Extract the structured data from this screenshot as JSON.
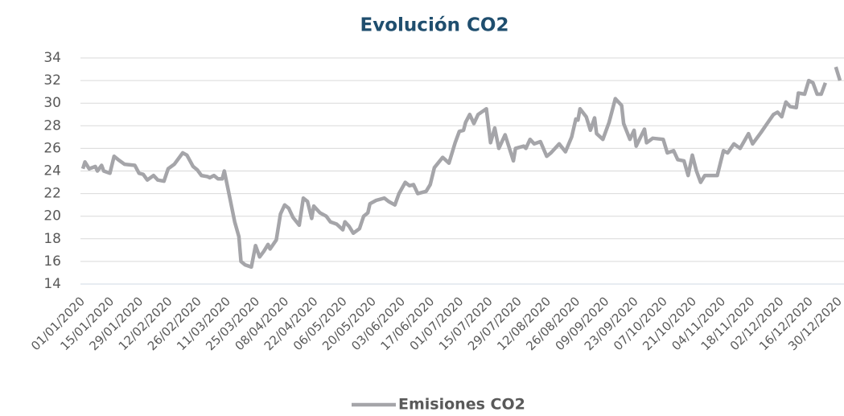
{
  "chart_data": {
    "type": "line",
    "title": "Evolución CO2",
    "x": [
      "01/01/2020",
      "02/01/2020",
      "04/01/2020",
      "07/01/2020",
      "08/01/2020",
      "10/01/2020",
      "11/01/2020",
      "14/01/2020",
      "16/01/2020",
      "18/01/2020",
      "21/01/2020",
      "26/01/2020",
      "28/01/2020",
      "30/01/2020",
      "01/02/2020",
      "04/02/2020",
      "06/02/2020",
      "09/02/2020",
      "11/02/2020",
      "14/02/2020",
      "18/02/2020",
      "20/02/2020",
      "23/02/2020",
      "25/02/2020",
      "27/02/2020",
      "01/03/2020",
      "02/03/2020",
      "04/03/2020",
      "06/03/2020",
      "08/03/2020",
      "09/03/2020",
      "11/03/2020",
      "14/03/2020",
      "16/03/2020",
      "17/03/2020",
      "19/03/2020",
      "22/03/2020",
      "24/03/2020",
      "26/03/2020",
      "28/03/2020",
      "30/03/2020",
      "31/03/2020",
      "03/04/2020",
      "05/04/2020",
      "07/04/2020",
      "09/04/2020",
      "11/04/2020",
      "14/04/2020",
      "16/04/2020",
      "18/04/2020",
      "20/04/2020",
      "21/04/2020",
      "24/04/2020",
      "27/04/2020",
      "29/04/2020",
      "02/05/2020",
      "05/05/2020",
      "06/05/2020",
      "08/05/2020",
      "10/05/2020",
      "13/05/2020",
      "15/05/2020",
      "17/05/2020",
      "18/05/2020",
      "21/05/2020",
      "25/05/2020",
      "27/05/2020",
      "30/05/2020",
      "01/06/2020",
      "04/06/2020",
      "06/06/2020",
      "08/06/2020",
      "10/06/2020",
      "14/06/2020",
      "16/06/2020",
      "18/06/2020",
      "22/06/2020",
      "25/06/2020",
      "28/06/2020",
      "30/06/2020",
      "02/07/2020",
      "03/07/2020",
      "05/07/2020",
      "07/07/2020",
      "09/07/2020",
      "13/07/2020",
      "15/07/2020",
      "17/07/2020",
      "19/07/2020",
      "22/07/2020",
      "26/07/2020",
      "27/07/2020",
      "31/07/2020",
      "01/08/2020",
      "03/08/2020",
      "05/08/2020",
      "08/08/2020",
      "11/08/2020",
      "13/08/2020",
      "17/08/2020",
      "20/08/2020",
      "23/08/2020",
      "25/08/2020",
      "26/08/2020",
      "27/08/2020",
      "30/08/2020",
      "01/09/2020",
      "03/09/2020",
      "04/09/2020",
      "07/09/2020",
      "10/09/2020",
      "13/09/2020",
      "16/09/2020",
      "17/09/2020",
      "20/09/2020",
      "22/09/2020",
      "23/09/2020",
      "27/09/2020",
      "28/09/2020",
      "01/10/2020",
      "06/10/2020",
      "08/10/2020",
      "11/10/2020",
      "13/10/2020",
      "16/10/2020",
      "18/10/2020",
      "20/10/2020",
      "22/10/2020",
      "24/10/2020",
      "26/10/2020",
      "01/11/2020",
      "04/11/2020",
      "06/11/2020",
      "09/11/2020",
      "12/11/2020",
      "16/11/2020",
      "18/11/2020",
      "22/11/2020",
      "25/11/2020",
      "28/11/2020",
      "30/11/2020",
      "02/12/2020",
      "04/12/2020",
      "06/12/2020",
      "09/12/2020",
      "10/12/2020",
      "13/12/2020",
      "15/12/2020",
      "17/12/2020",
      "19/12/2020",
      "21/12/2020",
      "23/12/2020",
      "26/12/2020",
      "28/12/2020",
      "30/12/2020"
    ],
    "series": [
      {
        "name": "Emisiones CO2",
        "color": "#a5a5a9",
        "values": [
          24.2,
          24.8,
          24.2,
          24.4,
          24.0,
          24.5,
          24.0,
          23.8,
          25.3,
          25.0,
          24.6,
          24.5,
          23.8,
          23.7,
          23.2,
          23.6,
          23.2,
          23.1,
          24.2,
          24.6,
          25.6,
          25.4,
          24.4,
          24.1,
          23.6,
          23.5,
          23.4,
          23.6,
          23.3,
          23.3,
          24.0,
          22.2,
          19.5,
          18.2,
          16.0,
          15.7,
          15.5,
          17.4,
          16.4,
          16.9,
          17.5,
          17.1,
          17.9,
          20.2,
          21.0,
          20.7,
          19.9,
          19.2,
          21.6,
          21.3,
          19.8,
          20.9,
          20.3,
          20.0,
          19.5,
          19.3,
          18.8,
          19.5,
          19.1,
          18.5,
          18.9,
          20.0,
          20.3,
          21.1,
          21.4,
          21.6,
          21.3,
          21.0,
          22.0,
          23.0,
          22.7,
          22.8,
          22.0,
          22.2,
          22.8,
          24.3,
          25.2,
          24.7,
          26.5,
          27.5,
          27.6,
          28.3,
          29.0,
          28.2,
          29.0,
          29.5,
          26.5,
          27.8,
          26.0,
          27.2,
          24.9,
          26.0,
          26.2,
          26.0,
          26.8,
          26.4,
          26.6,
          25.3,
          25.6,
          26.4,
          25.7,
          27.0,
          28.6,
          28.5,
          29.5,
          28.8,
          27.6,
          28.7,
          27.3,
          26.8,
          28.3,
          30.4,
          29.8,
          28.2,
          26.8,
          27.6,
          26.2,
          27.7,
          26.5,
          26.9,
          26.8,
          25.6,
          25.8,
          25.0,
          24.9,
          23.6,
          25.4,
          24.0,
          23.0,
          23.6,
          23.6,
          25.8,
          25.6,
          26.4,
          26.0,
          27.3,
          26.4,
          27.4,
          28.2,
          29.0,
          29.2,
          28.8,
          30.1,
          29.7,
          29.6,
          30.9,
          30.8,
          32.0,
          31.8,
          30.8,
          30.8,
          31.8,
          null,
          33.2,
          32.0
        ]
      }
    ],
    "xlim": [
      "01/01/2020",
      "30/12/2020"
    ],
    "xticks": [
      "01/01/2020",
      "15/01/2020",
      "29/01/2020",
      "12/02/2020",
      "26/02/2020",
      "11/03/2020",
      "25/03/2020",
      "08/04/2020",
      "22/04/2020",
      "06/05/2020",
      "20/05/2020",
      "03/06/2020",
      "17/06/2020",
      "01/07/2020",
      "15/07/2020",
      "29/07/2020",
      "12/08/2020",
      "26/08/2020",
      "09/09/2020",
      "23/09/2020",
      "07/10/2020",
      "21/10/2020",
      "04/11/2020",
      "18/11/2020",
      "02/12/2020",
      "16/12/2020",
      "30/12/2020"
    ],
    "ylim": [
      14,
      34
    ],
    "yticks": [
      14,
      16,
      18,
      20,
      22,
      24,
      26,
      28,
      30,
      32,
      34
    ],
    "grid": true,
    "legend": "bottom"
  }
}
